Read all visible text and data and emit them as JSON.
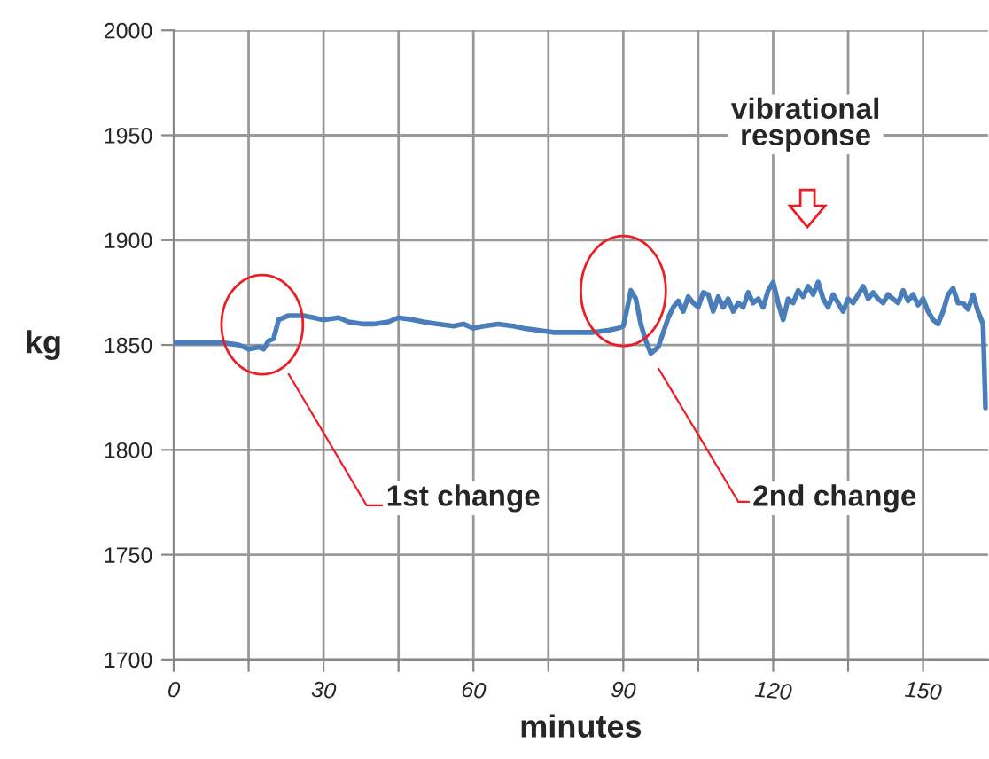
{
  "chart_data": {
    "type": "line",
    "xlabel": "minutes",
    "ylabel": "kg",
    "xlim": [
      0,
      163
    ],
    "xticks": [
      0,
      {
        "value": 15,
        "label": null
      },
      30,
      {
        "value": 45,
        "label": null
      },
      60,
      {
        "value": 75,
        "label": null
      },
      90,
      {
        "value": 105,
        "label": null
      },
      120,
      {
        "value": 135,
        "label": null
      },
      150
    ],
    "ylim": [
      1700,
      2000
    ],
    "yticks": [
      1700,
      1750,
      1800,
      1850,
      1900,
      1950,
      2000
    ],
    "grid": true,
    "marker": "none",
    "line_style": "solid",
    "series": [
      {
        "color": "#4a7ebb",
        "x": [
          0,
          5,
          10,
          13,
          15,
          17,
          18,
          19,
          20,
          21,
          23,
          26,
          28,
          30,
          33,
          35,
          38,
          40,
          43,
          45,
          48,
          50,
          53,
          56,
          58,
          60,
          62,
          65,
          68,
          70,
          73,
          76,
          80,
          84,
          87,
          89,
          90,
          91,
          91.5,
          92.5,
          93.5,
          94.5,
          95.5,
          97,
          98,
          99,
          100,
          101,
          102,
          103,
          104,
          105,
          106,
          107,
          108,
          109,
          110,
          111,
          112,
          113,
          114,
          115,
          116,
          117,
          118,
          119,
          120,
          121,
          122,
          123,
          124,
          125,
          126,
          127,
          128,
          129,
          130,
          131,
          132,
          133,
          134,
          135,
          136,
          137,
          138,
          139,
          140,
          141,
          142,
          143,
          144,
          145,
          146,
          147,
          148,
          149,
          150,
          151,
          152,
          153,
          154,
          155,
          156,
          157,
          158,
          159,
          160,
          161,
          162,
          162.5
        ],
        "values": [
          1851,
          1851,
          1851,
          1850,
          1848,
          1849,
          1848,
          1852,
          1853,
          1862,
          1864,
          1864,
          1863,
          1862,
          1863,
          1861,
          1860,
          1860,
          1861,
          1863,
          1862,
          1861,
          1860,
          1859,
          1860,
          1858,
          1859,
          1860,
          1859,
          1858,
          1857,
          1856,
          1856,
          1856,
          1857,
          1858,
          1859,
          1870,
          1876,
          1872,
          1860,
          1852,
          1846,
          1849,
          1856,
          1863,
          1868,
          1871,
          1866,
          1873,
          1870,
          1868,
          1875,
          1874,
          1866,
          1873,
          1868,
          1872,
          1866,
          1870,
          1868,
          1875,
          1870,
          1872,
          1868,
          1876,
          1880,
          1870,
          1862,
          1872,
          1870,
          1876,
          1873,
          1878,
          1874,
          1880,
          1872,
          1868,
          1874,
          1870,
          1866,
          1872,
          1870,
          1874,
          1878,
          1872,
          1875,
          1872,
          1870,
          1874,
          1872,
          1870,
          1876,
          1871,
          1874,
          1869,
          1872,
          1866,
          1862,
          1860,
          1866,
          1874,
          1877,
          1870,
          1870,
          1867,
          1874,
          1866,
          1860,
          1820
        ]
      }
    ],
    "annotations": [
      "1st change",
      "2nd change",
      "vibrational\nresponse"
    ]
  }
}
